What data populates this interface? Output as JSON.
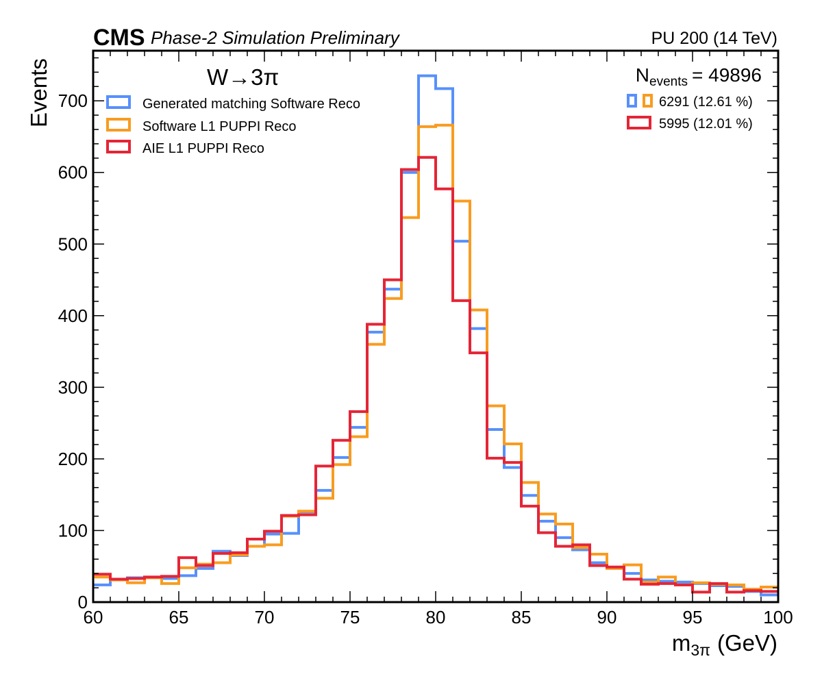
{
  "header": {
    "experiment": "CMS",
    "status": "Phase-2 Simulation Preliminary",
    "conditions": "PU 200 (14 TeV)"
  },
  "colors": {
    "gen": "#5790fc",
    "sw": "#f89c20",
    "aie": "#e42536"
  },
  "chart_data": {
    "type": "line",
    "step": true,
    "xlabel_main": "m",
    "xlabel_sub": "3π",
    "xlabel_unit": "(GeV)",
    "ylabel": "Events",
    "xlim": [
      60,
      100
    ],
    "ylim": [
      0,
      770
    ],
    "xticks": [
      60,
      65,
      70,
      75,
      80,
      85,
      90,
      95,
      100
    ],
    "yticks": [
      0,
      100,
      200,
      300,
      400,
      500,
      600,
      700
    ],
    "annotation": "W→3π",
    "nevents_label": "N",
    "nevents_sub": "events",
    "nevents_value": "= 49896",
    "count_entries": [
      {
        "text": "6291 (12.61 %)",
        "series": [
          0,
          1
        ]
      },
      {
        "text": "5995 (12.01 %)",
        "series": [
          2
        ]
      }
    ],
    "bin_edges": [
      60,
      61,
      62,
      63,
      64,
      65,
      66,
      67,
      68,
      69,
      70,
      71,
      72,
      73,
      74,
      75,
      76,
      77,
      78,
      79,
      80,
      81,
      82,
      83,
      84,
      85,
      86,
      87,
      88,
      89,
      90,
      91,
      92,
      93,
      94,
      95,
      96,
      97,
      98,
      99,
      100
    ],
    "series": [
      {
        "name": "Generated matching Software Reco",
        "values": [
          24,
          32,
          34,
          34,
          33,
          37,
          47,
          71,
          65,
          78,
          95,
          96,
          126,
          156,
          202,
          244,
          377,
          437,
          600,
          735,
          717,
          504,
          382,
          241,
          188,
          149,
          113,
          90,
          73,
          55,
          48,
          40,
          31,
          29,
          28,
          26,
          23,
          22,
          15,
          10
        ]
      },
      {
        "name": "Software L1 PUPPI Reco",
        "values": [
          35,
          31,
          27,
          34,
          26,
          48,
          53,
          55,
          66,
          78,
          80,
          120,
          127,
          145,
          192,
          231,
          360,
          424,
          537,
          664,
          666,
          560,
          408,
          274,
          221,
          167,
          123,
          109,
          76,
          67,
          47,
          52,
          28,
          35,
          24,
          27,
          25,
          24,
          18,
          21
        ]
      },
      {
        "name": "AIE L1 PUPPI Reco",
        "values": [
          39,
          32,
          33,
          35,
          36,
          62,
          51,
          68,
          69,
          88,
          99,
          121,
          122,
          190,
          226,
          266,
          388,
          450,
          604,
          621,
          577,
          421,
          348,
          201,
          195,
          134,
          97,
          78,
          80,
          51,
          49,
          32,
          25,
          26,
          24,
          14,
          26,
          14,
          16,
          15
        ]
      }
    ]
  }
}
